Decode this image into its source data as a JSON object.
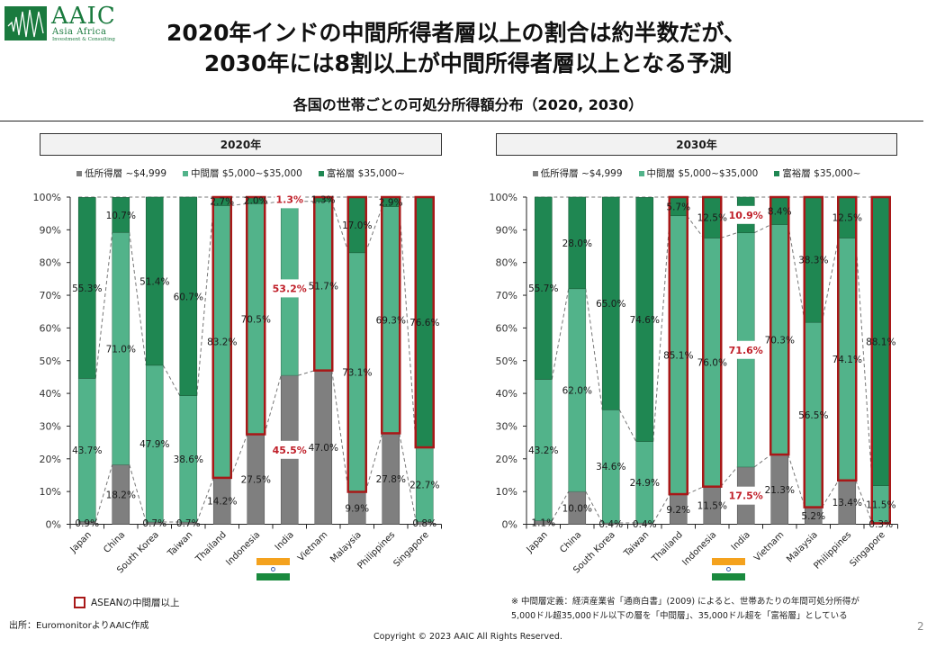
{
  "logo": {
    "name": "AAIC",
    "line1": "Asia Africa",
    "line2": "Investment & Consulting"
  },
  "header": {
    "title_line1": "2020年インドの中間所得者層以上の割合は約半数だが、",
    "title_line2": "2030年には8割以上が中間所得者層以上となる予測",
    "subtitle": "各国の世帯ごとの可処分所得額分布（2020, 2030）"
  },
  "colors": {
    "low": "#7f7f7f",
    "middle": "#52b38a",
    "high": "#1f8752",
    "asean_highlight": "#a81818",
    "india_label": "#c0202a"
  },
  "legend": {
    "low": "低所得層 ~$4,999",
    "middle": "中間層 $5,000~$35,000",
    "high": "富裕層 $35,000~"
  },
  "chart_data": [
    {
      "type": "bar",
      "stacked": true,
      "title": "2020年",
      "xlabel": "",
      "ylabel": "",
      "ylim": [
        0,
        100
      ],
      "yticks": [
        "0%",
        "10%",
        "20%",
        "30%",
        "40%",
        "50%",
        "60%",
        "70%",
        "80%",
        "90%",
        "100%"
      ],
      "legend_position": "top",
      "categories": [
        "Japan",
        "China",
        "South Korea",
        "Taiwan",
        "Thailand",
        "Indonesia",
        "India",
        "Vietnam",
        "Malaysia",
        "Philippines",
        "Singapore"
      ],
      "series": [
        {
          "key": "low",
          "name": "低所得層 ~$4,999",
          "values": [
            0.9,
            18.2,
            0.7,
            0.7,
            14.2,
            27.5,
            45.5,
            47.0,
            9.9,
            27.8,
            0.8
          ]
        },
        {
          "key": "middle",
          "name": "中間層 $5,000~$35,000",
          "values": [
            43.7,
            71.0,
            47.9,
            38.6,
            83.2,
            70.5,
            53.2,
            51.7,
            73.1,
            69.3,
            22.7
          ]
        },
        {
          "key": "high",
          "name": "富裕層 $35,000~",
          "values": [
            55.3,
            10.7,
            51.4,
            60.7,
            2.7,
            2.0,
            1.3,
            1.3,
            17.0,
            2.9,
            76.6
          ]
        }
      ],
      "asean_highlight": [
        "mid_high",
        "mid_high",
        null,
        "mid_high",
        "mid_high",
        "mid_high",
        "high"
      ],
      "asean_highlight_categories": [
        "Thailand",
        "Indonesia",
        "Vietnam",
        "Malaysia",
        "Philippines",
        "Singapore"
      ],
      "asean_highlight_segments": {
        "Thailand": "middle+high",
        "Indonesia": "middle+high",
        "Vietnam": "middle+high",
        "Malaysia": "middle+high",
        "Philippines": "middle+high",
        "Singapore": "high"
      },
      "emphasized_category": "India",
      "emphasized_labels": [
        "53.2%",
        "1.3%"
      ]
    },
    {
      "type": "bar",
      "stacked": true,
      "title": "2030年",
      "xlabel": "",
      "ylabel": "",
      "ylim": [
        0,
        100
      ],
      "yticks": [
        "0%",
        "10%",
        "20%",
        "30%",
        "40%",
        "50%",
        "60%",
        "70%",
        "80%",
        "90%",
        "100%"
      ],
      "legend_position": "top",
      "categories": [
        "Japan",
        "China",
        "South Korea",
        "Taiwan",
        "Thailand",
        "Indonesia",
        "India",
        "Vietnam",
        "Malaysia",
        "Philippines",
        "Singapore"
      ],
      "series": [
        {
          "key": "low",
          "name": "低所得層 ~$4,999",
          "values": [
            1.1,
            10.0,
            0.4,
            0.4,
            9.2,
            11.5,
            17.5,
            21.3,
            5.2,
            13.4,
            0.3
          ]
        },
        {
          "key": "middle",
          "name": "中間層 $5,000~$35,000",
          "values": [
            43.2,
            62.0,
            34.6,
            24.9,
            85.1,
            76.0,
            71.6,
            70.3,
            56.5,
            74.1,
            11.5
          ]
        },
        {
          "key": "high",
          "name": "富裕層 $35,000~",
          "values": [
            55.7,
            28.0,
            65.0,
            74.6,
            5.7,
            12.5,
            10.9,
            8.4,
            38.3,
            12.5,
            88.1
          ]
        }
      ],
      "asean_highlight_categories": [
        "Thailand",
        "Indonesia",
        "Vietnam",
        "Malaysia",
        "Philippines",
        "Singapore"
      ],
      "asean_highlight_segments": {
        "Thailand": "middle+high",
        "Indonesia": "middle+high",
        "Vietnam": "middle+high",
        "Malaysia": "middle+high",
        "Philippines": "middle+high",
        "Singapore": "middle+high"
      },
      "emphasized_category": "India",
      "emphasized_labels": [
        "71.6%",
        "10.9%"
      ]
    }
  ],
  "footer": {
    "asean_key": "ASEANの中間層以上",
    "source": "出所：EuromonitorよりAAIC作成",
    "note_line1": "※ 中間層定義：経済産業省「通商白書」(2009) によると、世帯あたりの年間可処分所得が",
    "note_line2": "5,000ドル超35,000ドル以下の層を「中間層」、35,000ドル超を「富裕層」としている",
    "copyright": "Copyright © 2023 AAIC All Rights Reserved.",
    "page_number": "2"
  }
}
